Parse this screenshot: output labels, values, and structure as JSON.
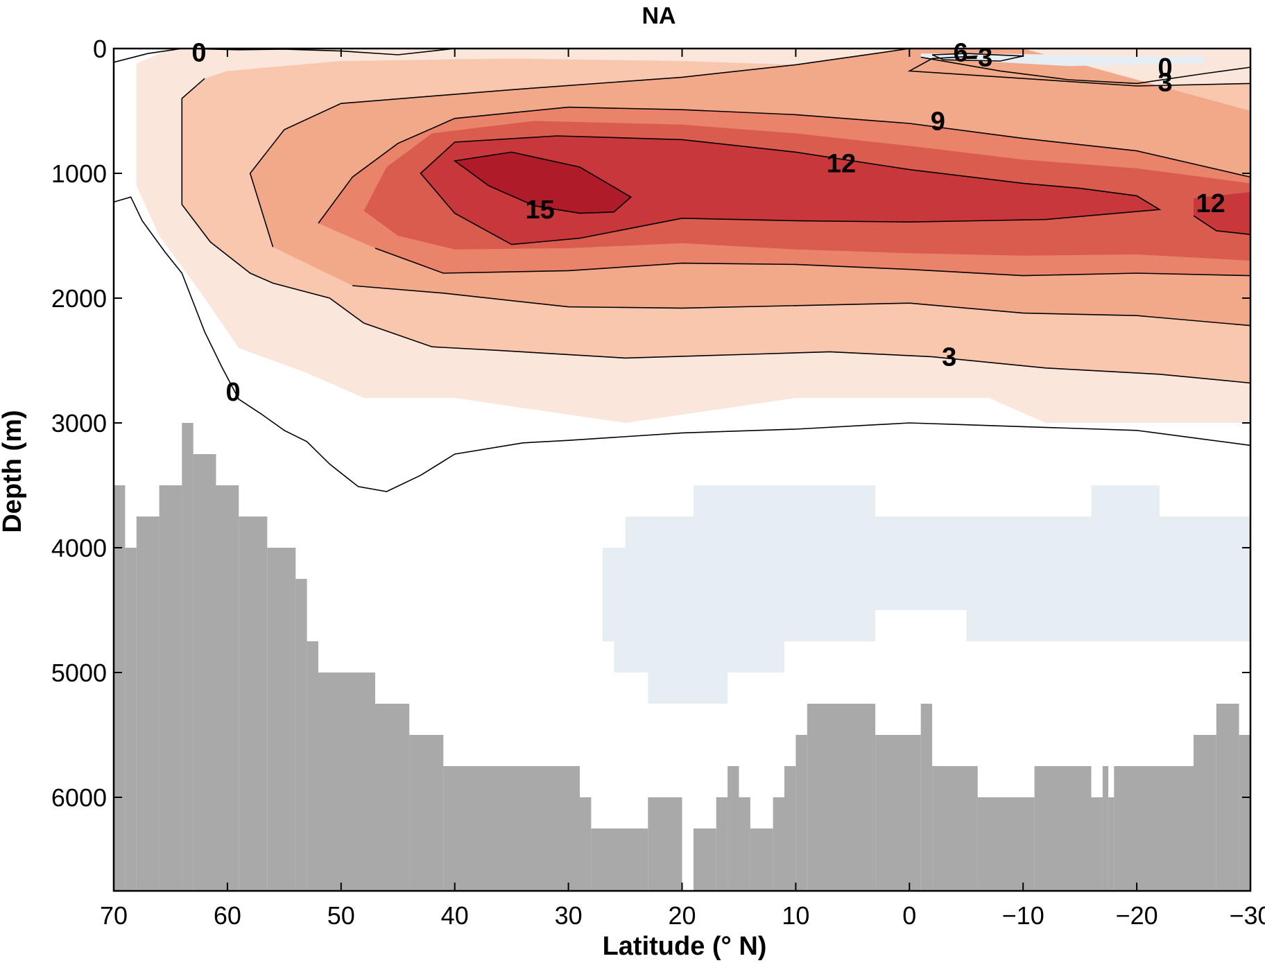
{
  "chart_data": {
    "type": "heatmap",
    "title": "NA",
    "xlabel": "Latitude (° N)",
    "ylabel": "Depth (m)",
    "xlim": [
      70,
      -30
    ],
    "ylim": [
      6750,
      0
    ],
    "x_ticks": [
      70,
      60,
      50,
      40,
      30,
      20,
      10,
      0,
      -10,
      -20,
      -30
    ],
    "x_tick_labels": [
      "70",
      "60",
      "50",
      "40",
      "30",
      "20",
      "10",
      "0",
      "−10",
      "−20",
      "−30"
    ],
    "y_ticks": [
      0,
      1000,
      2000,
      3000,
      4000,
      5000,
      6000
    ],
    "y_tick_labels": [
      "0",
      "1000",
      "2000",
      "3000",
      "4000",
      "5000",
      "6000"
    ],
    "colors": {
      "positive_levels": [
        "#fbe6dc",
        "#f8c7ae",
        "#f2a98a",
        "#e9836a",
        "#da5c4f",
        "#c8383a",
        "#b01b2a"
      ],
      "negative_fill": "#e6eef3",
      "topography": "#a9a9a9",
      "contour_line": "#000000"
    },
    "contour_labels": [
      {
        "text": "0",
        "lat": 62.5,
        "depth": 30
      },
      {
        "text": "6",
        "lat": -4.5,
        "depth": 30
      },
      {
        "text": "−3",
        "lat": -6,
        "depth": 70
      },
      {
        "text": "0",
        "lat": -22.5,
        "depth": 150
      },
      {
        "text": "3",
        "lat": -22.5,
        "depth": 270
      },
      {
        "text": "9",
        "lat": -2.5,
        "depth": 580
      },
      {
        "text": "12",
        "lat": 6,
        "depth": 920
      },
      {
        "text": "15",
        "lat": 32.5,
        "depth": 1290
      },
      {
        "text": "12",
        "lat": -26.5,
        "depth": 1240
      },
      {
        "text": "3",
        "lat": -3.5,
        "depth": 2470
      },
      {
        "text": "0",
        "lat": 59.5,
        "depth": 2750
      }
    ],
    "contour_lines": [
      {
        "level": 0,
        "points": [
          [
            70,
            110
          ],
          [
            67,
            40
          ],
          [
            64,
            0
          ],
          [
            59,
            10
          ],
          [
            55,
            5
          ],
          [
            50,
            20
          ],
          [
            45,
            50
          ],
          [
            40,
            0
          ]
        ]
      },
      {
        "level": 0,
        "points": [
          [
            70,
            1230
          ],
          [
            68.5,
            1190
          ],
          [
            67.5,
            1380
          ],
          [
            65.5,
            1630
          ],
          [
            64,
            1800
          ],
          [
            62,
            2270
          ],
          [
            60.5,
            2550
          ],
          [
            59,
            2810
          ],
          [
            57,
            2930
          ],
          [
            55,
            3060
          ],
          [
            53,
            3150
          ],
          [
            51,
            3330
          ],
          [
            48.5,
            3510
          ],
          [
            46,
            3550
          ],
          [
            43,
            3420
          ],
          [
            40,
            3250
          ],
          [
            34,
            3160
          ],
          [
            30,
            3140
          ],
          [
            20,
            3080
          ],
          [
            10,
            3050
          ],
          [
            0,
            3000
          ],
          [
            -10,
            3030
          ],
          [
            -20,
            3060
          ],
          [
            -30,
            3180
          ]
        ]
      },
      {
        "level": 0,
        "points": [
          [
            -1,
            70
          ],
          [
            -8,
            180
          ],
          [
            -14,
            250
          ],
          [
            -20,
            280
          ],
          [
            -26,
            200
          ],
          [
            -30,
            150
          ]
        ]
      },
      {
        "level": -3,
        "points": [
          [
            -2,
            50
          ],
          [
            -5,
            40
          ],
          [
            -10,
            60
          ],
          [
            -8,
            100
          ],
          [
            -3,
            90
          ],
          [
            -2,
            50
          ]
        ]
      },
      {
        "level": 3,
        "points": [
          [
            62,
            240
          ],
          [
            64,
            400
          ],
          [
            64,
            1250
          ],
          [
            61.5,
            1550
          ],
          [
            58,
            1800
          ],
          [
            56,
            1880
          ],
          [
            51,
            2000
          ],
          [
            48,
            2200
          ],
          [
            42,
            2390
          ],
          [
            36,
            2420
          ],
          [
            25,
            2480
          ],
          [
            14,
            2450
          ],
          [
            7,
            2430
          ],
          [
            -2,
            2470
          ],
          [
            -12,
            2560
          ],
          [
            -22,
            2610
          ],
          [
            -30,
            2680
          ]
        ]
      },
      {
        "level": 3,
        "points": [
          [
            -30,
            280
          ],
          [
            -20,
            300
          ],
          [
            -10,
            240
          ],
          [
            0,
            180
          ],
          [
            -2,
            80
          ],
          [
            -6,
            60
          ]
        ]
      },
      {
        "level": 6,
        "points": [
          [
            49,
            1900
          ],
          [
            41,
            1960
          ],
          [
            30,
            2070
          ],
          [
            20,
            2080
          ],
          [
            0,
            2040
          ],
          [
            -10,
            2120
          ],
          [
            -20,
            2140
          ],
          [
            -30,
            2220
          ]
        ]
      },
      {
        "level": 6,
        "points": [
          [
            56,
            1590
          ],
          [
            58,
            1000
          ],
          [
            55,
            650
          ],
          [
            50,
            440
          ],
          [
            35,
            330
          ],
          [
            20,
            230
          ],
          [
            10,
            130
          ],
          [
            3,
            40
          ],
          [
            0,
            0
          ]
        ]
      },
      {
        "level": 9,
        "points": [
          [
            52,
            1400
          ],
          [
            49,
            1030
          ],
          [
            45,
            760
          ],
          [
            40,
            560
          ],
          [
            30,
            470
          ],
          [
            20,
            490
          ],
          [
            10,
            530
          ],
          [
            0,
            600
          ],
          [
            -10,
            720
          ],
          [
            -20,
            820
          ],
          [
            -30,
            1030
          ]
        ]
      },
      {
        "level": 9,
        "points": [
          [
            47,
            1600
          ],
          [
            41,
            1800
          ],
          [
            30,
            1780
          ],
          [
            20,
            1720
          ],
          [
            10,
            1730
          ],
          [
            0,
            1770
          ],
          [
            -10,
            1820
          ],
          [
            -20,
            1800
          ],
          [
            -30,
            1820
          ]
        ]
      },
      {
        "level": 12,
        "points": [
          [
            29,
            1520
          ],
          [
            35,
            1570
          ],
          [
            40,
            1320
          ],
          [
            43,
            1000
          ],
          [
            40,
            750
          ],
          [
            31,
            700
          ],
          [
            20,
            730
          ],
          [
            10,
            830
          ],
          [
            0,
            970
          ],
          [
            -10,
            1080
          ],
          [
            -15,
            1120
          ],
          [
            -20,
            1180
          ],
          [
            -22,
            1290
          ],
          [
            -12,
            1370
          ],
          [
            0,
            1390
          ],
          [
            10,
            1380
          ],
          [
            20,
            1360
          ],
          [
            29,
            1520
          ]
        ]
      },
      {
        "level": 12,
        "points": [
          [
            -25,
            1340
          ],
          [
            -27,
            1460
          ],
          [
            -30,
            1490
          ]
        ]
      },
      {
        "level": 15,
        "points": [
          [
            26,
            1310
          ],
          [
            24.5,
            1190
          ],
          [
            29,
            950
          ],
          [
            35,
            830
          ],
          [
            40,
            900
          ],
          [
            37,
            1100
          ],
          [
            33,
            1260
          ],
          [
            29,
            1320
          ],
          [
            26,
            1310
          ]
        ]
      }
    ],
    "topography_bottom_depth": [
      {
        "lat_from": 70.0,
        "lat_to": 69.0,
        "depth": 3500
      },
      {
        "lat_from": 69.0,
        "lat_to": 68.0,
        "depth": 4000
      },
      {
        "lat_from": 68.0,
        "lat_to": 66.0,
        "depth": 3750
      },
      {
        "lat_from": 66.0,
        "lat_to": 64.0,
        "depth": 3500
      },
      {
        "lat_from": 64.0,
        "lat_to": 63.0,
        "depth": 3000
      },
      {
        "lat_from": 63.0,
        "lat_to": 61.0,
        "depth": 3250
      },
      {
        "lat_from": 61.0,
        "lat_to": 59.0,
        "depth": 3500
      },
      {
        "lat_from": 59.0,
        "lat_to": 56.5,
        "depth": 3750
      },
      {
        "lat_from": 56.5,
        "lat_to": 54.0,
        "depth": 4000
      },
      {
        "lat_from": 54.0,
        "lat_to": 53.0,
        "depth": 4250
      },
      {
        "lat_from": 53.0,
        "lat_to": 52.0,
        "depth": 4750
      },
      {
        "lat_from": 52.0,
        "lat_to": 47.0,
        "depth": 5000
      },
      {
        "lat_from": 47.0,
        "lat_to": 44.0,
        "depth": 5250
      },
      {
        "lat_from": 44.0,
        "lat_to": 41.0,
        "depth": 5500
      },
      {
        "lat_from": 41.0,
        "lat_to": 29.0,
        "depth": 5750
      },
      {
        "lat_from": 29.0,
        "lat_to": 28.0,
        "depth": 6000
      },
      {
        "lat_from": 28.0,
        "lat_to": 23.0,
        "depth": 6250
      },
      {
        "lat_from": 23.0,
        "lat_to": 20.0,
        "depth": 6000
      },
      {
        "lat_from": 20.0,
        "lat_to": 19.0,
        "depth": 6750
      },
      {
        "lat_from": 19.0,
        "lat_to": 17.0,
        "depth": 6250
      },
      {
        "lat_from": 17.0,
        "lat_to": 16.0,
        "depth": 6000
      },
      {
        "lat_from": 16.0,
        "lat_to": 15.0,
        "depth": 5750
      },
      {
        "lat_from": 15.0,
        "lat_to": 14.0,
        "depth": 6000
      },
      {
        "lat_from": 14.0,
        "lat_to": 12.0,
        "depth": 6250
      },
      {
        "lat_from": 12.0,
        "lat_to": 11.0,
        "depth": 6000
      },
      {
        "lat_from": 11.0,
        "lat_to": 10.0,
        "depth": 5750
      },
      {
        "lat_from": 10.0,
        "lat_to": 9.0,
        "depth": 5500
      },
      {
        "lat_from": 9.0,
        "lat_to": 3.0,
        "depth": 5250
      },
      {
        "lat_from": 3.0,
        "lat_to": -1.0,
        "depth": 5500
      },
      {
        "lat_from": -1.0,
        "lat_to": -2.0,
        "depth": 5250
      },
      {
        "lat_from": -2.0,
        "lat_to": -6.0,
        "depth": 5750
      },
      {
        "lat_from": -6.0,
        "lat_to": -11.0,
        "depth": 6000
      },
      {
        "lat_from": -11.0,
        "lat_to": -16.0,
        "depth": 5750
      },
      {
        "lat_from": -16.0,
        "lat_to": -17.0,
        "depth": 6000
      },
      {
        "lat_from": -17.0,
        "lat_to": -17.5,
        "depth": 5750
      },
      {
        "lat_from": -17.5,
        "lat_to": -18.0,
        "depth": 6000
      },
      {
        "lat_from": -18.0,
        "lat_to": -18.5,
        "depth": 5750
      },
      {
        "lat_from": -18.5,
        "lat_to": -25.0,
        "depth": 5750
      },
      {
        "lat_from": -25.0,
        "lat_to": -27.0,
        "depth": 5500
      },
      {
        "lat_from": -27.0,
        "lat_to": -29.0,
        "depth": 5250
      },
      {
        "lat_from": -29.0,
        "lat_to": -30.0,
        "depth": 5500
      }
    ]
  }
}
